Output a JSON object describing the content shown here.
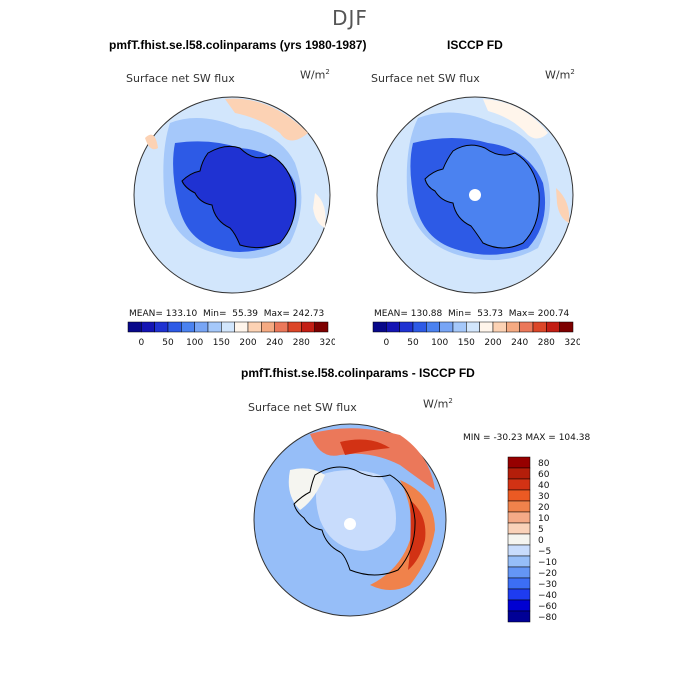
{
  "page": {
    "title": "DJF"
  },
  "palettes": {
    "absolute": [
      "#08088a",
      "#1414b4",
      "#1f32d2",
      "#2d5ae6",
      "#4b82f0",
      "#78a5f5",
      "#a5c8fa",
      "#d2e6fc",
      "#fff5eb",
      "#fcd2b4",
      "#f5aa82",
      "#eb785a",
      "#dc4628",
      "#c31e14",
      "#7d0000"
    ],
    "difference": [
      "#000096",
      "#0000d2",
      "#1e3cf0",
      "#3c6ef5",
      "#6496f5",
      "#96bef8",
      "#c8dcfc",
      "#f5f5f0",
      "#fad2b9",
      "#f5aa87",
      "#f0824b",
      "#eb5a23",
      "#d23214",
      "#b41e0a",
      "#960000"
    ]
  },
  "chart_data": [
    {
      "type": "heatmap",
      "panel": "model",
      "title": "pmfT.fhist.se.l58.colinparams (yrs 1980-1987)",
      "variable": "Surface net SW flux",
      "units": "W/m",
      "units_exp": "2",
      "stats": {
        "mean_label": "MEAN=",
        "mean": "133.10",
        "min_label": "Min=",
        "min": "55.39",
        "max_label": "Max=",
        "max": "242.73"
      },
      "colorbar": {
        "levels": [
          20,
          50,
          80,
          100,
          120,
          150,
          180,
          200,
          220,
          240,
          260,
          280,
          300,
          320
        ],
        "tick_labels": [
          "0",
          "50",
          "100",
          "150",
          "200",
          "240",
          "280",
          "320"
        ]
      }
    },
    {
      "type": "heatmap",
      "panel": "observations",
      "title": "ISCCP FD",
      "variable": "Surface net SW flux",
      "units": "W/m",
      "units_exp": "2",
      "stats": {
        "mean_label": "MEAN=",
        "mean": "130.88",
        "min_label": "Min=",
        "min": "53.73",
        "max_label": "Max=",
        "max": "200.74"
      },
      "colorbar": {
        "levels": [
          20,
          50,
          80,
          100,
          120,
          150,
          180,
          200,
          220,
          240,
          260,
          280,
          300,
          320
        ],
        "tick_labels": [
          "0",
          "50",
          "100",
          "150",
          "200",
          "240",
          "280",
          "320"
        ]
      }
    },
    {
      "type": "heatmap",
      "panel": "difference",
      "title": "pmfT.fhist.se.l58.colinparams - ISCCP FD",
      "variable": "Surface net SW flux",
      "units": "W/m",
      "units_exp": "2",
      "stats": {
        "min_label": "MIN =",
        "min": "-30.23",
        "max_label": "MAX =",
        "max": "104.38"
      },
      "colorbar": {
        "levels": [
          "80",
          "60",
          "40",
          "30",
          "20",
          "10",
          "5",
          "0",
          "−5",
          "−10",
          "−20",
          "−30",
          "−40",
          "−60",
          "−80"
        ]
      }
    }
  ]
}
